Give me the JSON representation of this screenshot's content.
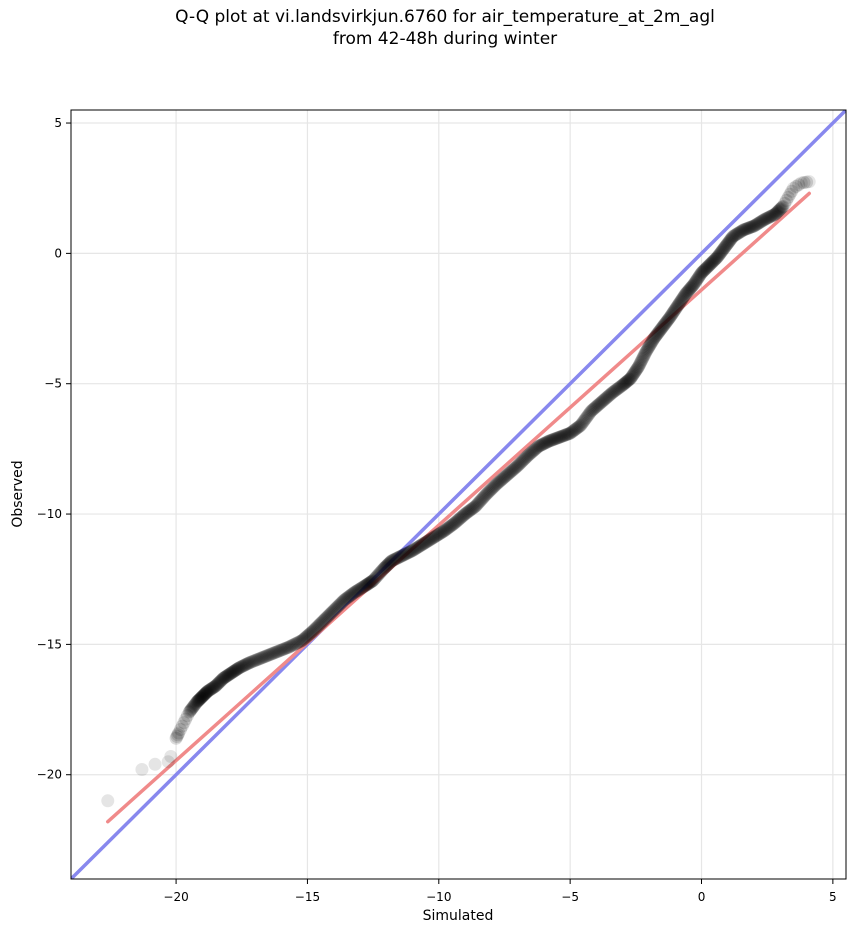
{
  "chart_data": {
    "type": "scatter",
    "title_line1": "Q-Q plot at vi.landsvirkjun.6760 for air_temperature_at_2m_agl",
    "title_line2": "from 42-48h during winter",
    "xlabel": "Simulated",
    "ylabel": "Observed",
    "xlim": [
      -24,
      5.5
    ],
    "ylim": [
      -24,
      5.5
    ],
    "xticks": [
      -20,
      -15,
      -10,
      -5,
      0,
      5
    ],
    "yticks": [
      -20,
      -15,
      -10,
      -5,
      0,
      5
    ],
    "xtick_labels": [
      "−20",
      "−15",
      "−10",
      "−5",
      "0",
      "5"
    ],
    "ytick_labels": [
      "−20",
      "−15",
      "−10",
      "−5",
      "0",
      "5"
    ],
    "grid": true,
    "identity_line": {
      "color": "#8888ee",
      "from": [
        -24,
        -24
      ],
      "to": [
        5.5,
        5.5
      ]
    },
    "fit_line": {
      "color": "#f08a8a",
      "from": [
        -22.6,
        -21.8
      ],
      "to": [
        4.1,
        2.3
      ]
    },
    "point_color": "#000000",
    "points": [
      [
        -22.6,
        -21.0
      ],
      [
        -21.3,
        -19.8
      ],
      [
        -20.8,
        -19.6
      ],
      [
        -20.3,
        -19.5
      ],
      [
        -20.2,
        -19.3
      ],
      [
        -20.0,
        -18.6
      ],
      [
        -19.9,
        -18.4
      ],
      [
        -19.7,
        -18.0
      ],
      [
        -19.5,
        -17.6
      ],
      [
        -19.2,
        -17.2
      ],
      [
        -19.0,
        -17.0
      ],
      [
        -18.8,
        -16.8
      ],
      [
        -18.5,
        -16.6
      ],
      [
        -18.2,
        -16.3
      ],
      [
        -17.9,
        -16.1
      ],
      [
        -17.6,
        -15.9
      ],
      [
        -17.2,
        -15.7
      ],
      [
        -16.7,
        -15.5
      ],
      [
        -16.2,
        -15.3
      ],
      [
        -15.7,
        -15.1
      ],
      [
        -15.2,
        -14.85
      ],
      [
        -14.8,
        -14.5
      ],
      [
        -14.4,
        -14.1
      ],
      [
        -14.0,
        -13.7
      ],
      [
        -13.6,
        -13.3
      ],
      [
        -13.2,
        -13.0
      ],
      [
        -12.8,
        -12.75
      ],
      [
        -12.5,
        -12.55
      ],
      [
        -12.1,
        -12.1
      ],
      [
        -11.8,
        -11.8
      ],
      [
        -11.4,
        -11.6
      ],
      [
        -11.0,
        -11.4
      ],
      [
        -10.6,
        -11.15
      ],
      [
        -10.2,
        -10.9
      ],
      [
        -9.8,
        -10.65
      ],
      [
        -9.4,
        -10.35
      ],
      [
        -9.0,
        -10.0
      ],
      [
        -8.6,
        -9.7
      ],
      [
        -8.2,
        -9.25
      ],
      [
        -7.8,
        -8.85
      ],
      [
        -7.4,
        -8.5
      ],
      [
        -7.0,
        -8.15
      ],
      [
        -6.6,
        -7.75
      ],
      [
        -6.2,
        -7.4
      ],
      [
        -5.8,
        -7.2
      ],
      [
        -5.4,
        -7.05
      ],
      [
        -5.0,
        -6.9
      ],
      [
        -4.6,
        -6.6
      ],
      [
        -4.2,
        -6.05
      ],
      [
        -3.8,
        -5.7
      ],
      [
        -3.4,
        -5.35
      ],
      [
        -3.0,
        -5.05
      ],
      [
        -2.7,
        -4.8
      ],
      [
        -2.4,
        -4.35
      ],
      [
        -2.1,
        -3.75
      ],
      [
        -1.8,
        -3.25
      ],
      [
        -1.5,
        -2.85
      ],
      [
        -1.2,
        -2.45
      ],
      [
        -0.9,
        -2.0
      ],
      [
        -0.6,
        -1.55
      ],
      [
        -0.3,
        -1.2
      ],
      [
        0.0,
        -0.75
      ],
      [
        0.3,
        -0.45
      ],
      [
        0.6,
        -0.15
      ],
      [
        0.9,
        0.25
      ],
      [
        1.2,
        0.65
      ],
      [
        1.6,
        0.9
      ],
      [
        2.0,
        1.05
      ],
      [
        2.4,
        1.3
      ],
      [
        2.8,
        1.5
      ],
      [
        3.1,
        1.8
      ],
      [
        3.3,
        2.15
      ],
      [
        3.5,
        2.5
      ],
      [
        3.8,
        2.7
      ],
      [
        4.1,
        2.75
      ]
    ]
  }
}
